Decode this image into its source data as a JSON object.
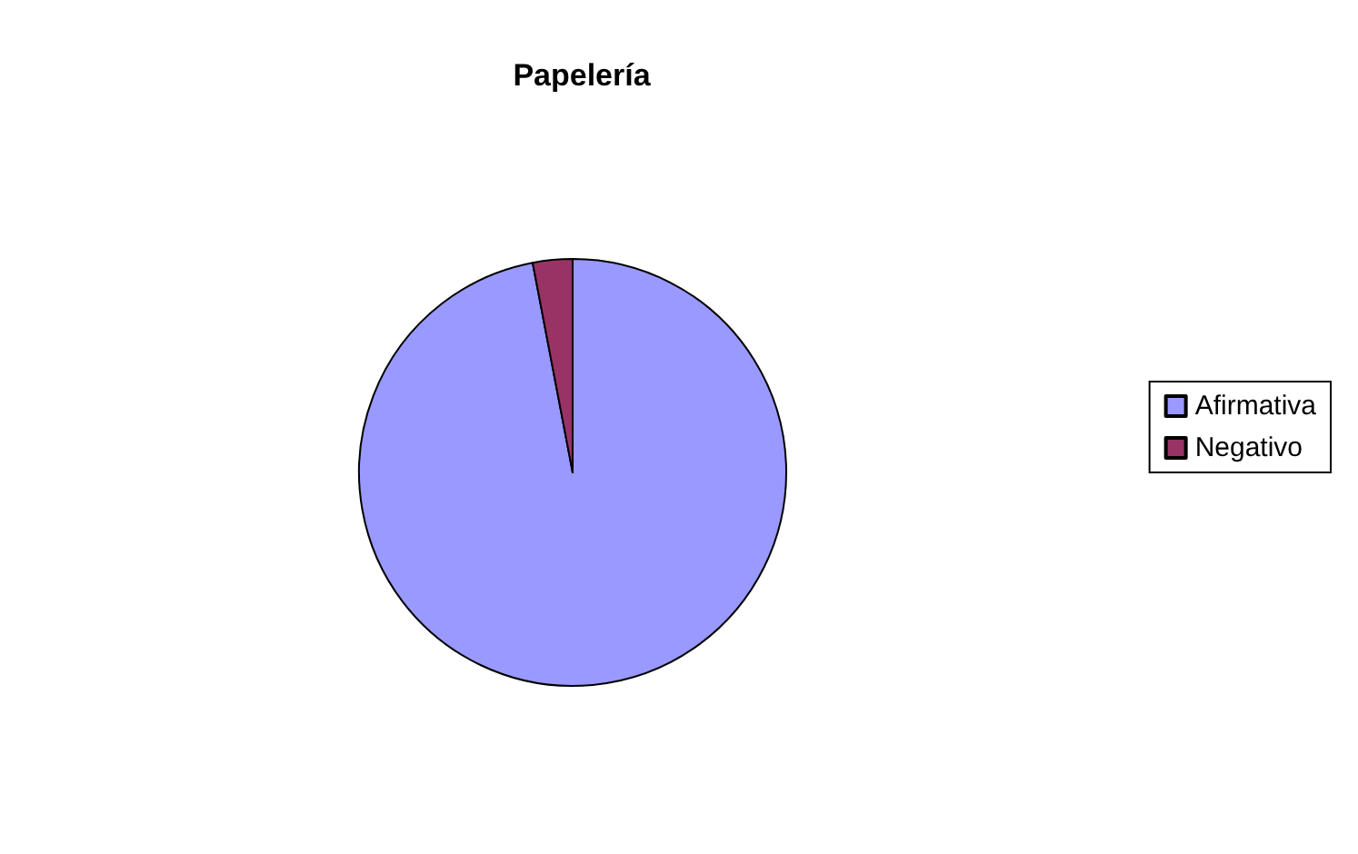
{
  "chart_data": {
    "type": "pie",
    "title": "Papelería",
    "categories": [
      "Afirmativa",
      "Negativo"
    ],
    "values": [
      97,
      3
    ],
    "colors": [
      "#9999ff",
      "#993366"
    ],
    "legend": "right"
  }
}
